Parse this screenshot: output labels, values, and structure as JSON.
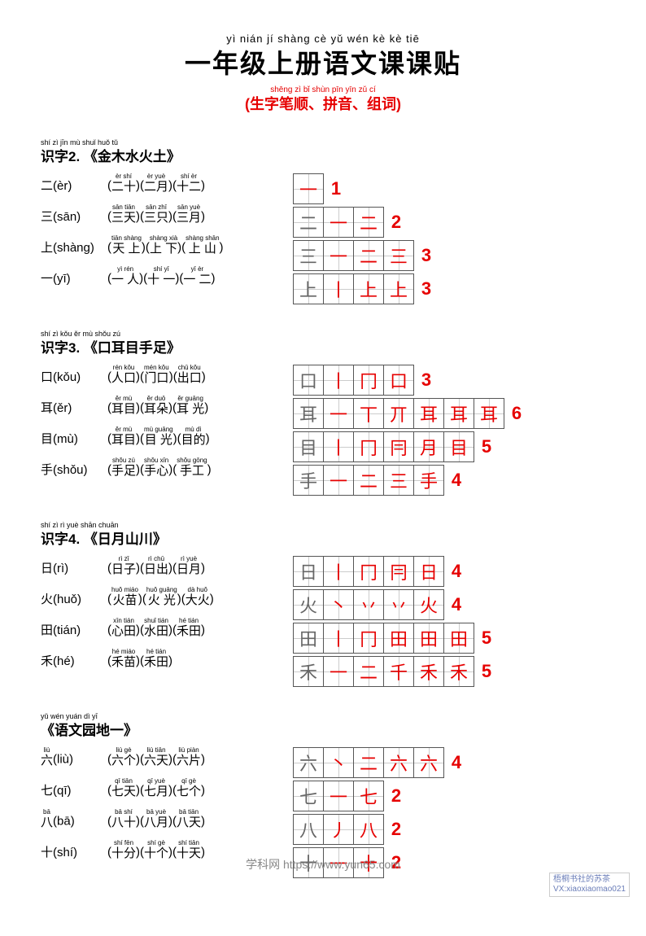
{
  "title": {
    "pinyin": "yì nián jí shàng cè yǔ wén kè kè tiē",
    "text": "一年级上册语文课课贴",
    "sub_pinyin": "shēng zì bǐ shùn   pīn yīn   zǔ cí",
    "sub_text": "(生字笔顺、拼音、组词)"
  },
  "sections": [
    {
      "head_pinyin": "shí zì                 jīn mù shuǐ huǒ tǔ",
      "head_text": "识字2. 《金木水火土》",
      "entries": [
        {
          "char": "二",
          "py": "èr",
          "words": [
            {
              "p": "èr shí",
              "t": "二十"
            },
            {
              "p": "èr yuè",
              "t": "二月"
            },
            {
              "p": "shí èr",
              "t": "十二"
            }
          ]
        },
        {
          "char": "三",
          "py": "sān",
          "words": [
            {
              "p": "sān tiān",
              "t": "三天"
            },
            {
              "p": "sān zhī",
              "t": "三只"
            },
            {
              "p": "sān yuè",
              "t": "三月"
            }
          ]
        },
        {
          "char": "上",
          "py": "shàng",
          "words": [
            {
              "p": "tiān shàng",
              "t": "天 上"
            },
            {
              "p": "shàng xià",
              "t": "上 下"
            },
            {
              "p": "shàng shān",
              "t": "上 山"
            }
          ]
        },
        {
          "char": "一",
          "py": "yī",
          "words": [
            {
              "p": "yì rén",
              "t": "一 人"
            },
            {
              "p": "shí yī",
              "t": "十 一"
            },
            {
              "p": "yī èr",
              "t": "一 二"
            }
          ]
        }
      ],
      "strokes": [
        {
          "cells": [
            "一"
          ],
          "count": "1",
          "colors": [
            "red"
          ]
        },
        {
          "cells": [
            "二",
            "一",
            "二"
          ],
          "count": "2",
          "colors": [
            "gray",
            "red",
            "red"
          ]
        },
        {
          "cells": [
            "三",
            "一",
            "二",
            "三"
          ],
          "count": "3",
          "colors": [
            "gray",
            "red",
            "red",
            "red"
          ]
        },
        {
          "cells": [
            "上",
            "丨",
            "上",
            "上"
          ],
          "count": "3",
          "colors": [
            "gray",
            "red",
            "red",
            "red"
          ]
        }
      ]
    },
    {
      "head_pinyin": "shí zì             kǒu ěr mù shǒu zú",
      "head_text": "识字3. 《口耳目手足》",
      "entries": [
        {
          "char": "口",
          "py": "kǒu",
          "words": [
            {
              "p": "rén kǒu",
              "t": "人口"
            },
            {
              "p": "mén kǒu",
              "t": "门口"
            },
            {
              "p": "chū kǒu",
              "t": "出口"
            }
          ]
        },
        {
          "char": "耳",
          "py": "ěr",
          "words": [
            {
              "p": "ěr mù",
              "t": "耳目"
            },
            {
              "p": "ěr duō",
              "t": "耳朵"
            },
            {
              "p": "ěr guāng",
              "t": "耳 光"
            }
          ]
        },
        {
          "char": "目",
          "py": "mù",
          "words": [
            {
              "p": "ěr mù",
              "t": "耳目"
            },
            {
              "p": "mù guāng",
              "t": "目 光"
            },
            {
              "p": "mù dì",
              "t": "目的"
            }
          ]
        },
        {
          "char": "手",
          "py": "shǒu",
          "words": [
            {
              "p": "shǒu zú",
              "t": "手足"
            },
            {
              "p": "shǒu xīn",
              "t": "手心"
            },
            {
              "p": "shǒu gōng",
              "t": "手工"
            }
          ]
        }
      ],
      "strokes": [
        {
          "cells": [
            "口",
            "丨",
            "冂",
            "口"
          ],
          "count": "3",
          "colors": [
            "gray",
            "red",
            "red",
            "red"
          ]
        },
        {
          "cells": [
            "耳",
            "一",
            "丅",
            "丌",
            "耳",
            "耳",
            "耳"
          ],
          "count": "6",
          "colors": [
            "gray",
            "red",
            "red",
            "red",
            "red",
            "red",
            "red"
          ]
        },
        {
          "cells": [
            "目",
            "丨",
            "冂",
            "冃",
            "月",
            "目"
          ],
          "count": "5",
          "colors": [
            "gray",
            "red",
            "red",
            "red",
            "red",
            "red"
          ]
        },
        {
          "cells": [
            "手",
            "一",
            "二",
            "三",
            "手"
          ],
          "count": "4",
          "colors": [
            "gray",
            "red",
            "red",
            "red",
            "red"
          ]
        }
      ]
    },
    {
      "head_pinyin": "shí zì           rì yuè shān chuān",
      "head_text": "识字4. 《日月山川》",
      "entries": [
        {
          "char": "日",
          "py": "rì",
          "words": [
            {
              "p": "rì zǐ",
              "t": "日子"
            },
            {
              "p": "rì chū",
              "t": "日出"
            },
            {
              "p": "rì yuè",
              "t": "日月"
            }
          ]
        },
        {
          "char": "火",
          "py": "huǒ",
          "words": [
            {
              "p": "huǒ miáo",
              "t": "火苗"
            },
            {
              "p": "huǒ guāng",
              "t": "火 光"
            },
            {
              "p": "dà huǒ",
              "t": "大火"
            }
          ]
        },
        {
          "char": "田",
          "py": "tián",
          "words": [
            {
              "p": "xīn tián",
              "t": "心田"
            },
            {
              "p": "shuǐ tián",
              "t": "水田"
            },
            {
              "p": "hé tián",
              "t": "禾田"
            }
          ]
        },
        {
          "char": "禾",
          "py": "hé",
          "words": [
            {
              "p": "hé miáo",
              "t": "禾苗"
            },
            {
              "p": "hé tián",
              "t": "禾田"
            }
          ]
        }
      ],
      "strokes": [
        {
          "cells": [
            "日",
            "丨",
            "冂",
            "冃",
            "日"
          ],
          "count": "4",
          "colors": [
            "gray",
            "red",
            "red",
            "red",
            "red"
          ]
        },
        {
          "cells": [
            "火",
            "丶",
            "丷",
            "丷",
            "火"
          ],
          "count": "4",
          "colors": [
            "gray",
            "red",
            "red",
            "red",
            "red"
          ]
        },
        {
          "cells": [
            "田",
            "丨",
            "冂",
            "田",
            "田",
            "田"
          ],
          "count": "5",
          "colors": [
            "gray",
            "red",
            "red",
            "red",
            "red",
            "red"
          ]
        },
        {
          "cells": [
            "禾",
            "一",
            "二",
            "千",
            "禾",
            "禾"
          ],
          "count": "5",
          "colors": [
            "gray",
            "red",
            "red",
            "red",
            "red",
            "red"
          ]
        }
      ]
    },
    {
      "head_pinyin": "yǔ wén yuán dì yī",
      "head_text": "《语文园地一》",
      "entries": [
        {
          "char": "六",
          "py": "liù",
          "top_py": "liù",
          "words": [
            {
              "p": "liù gè",
              "t": "六个"
            },
            {
              "p": "liù tiān",
              "t": "六天"
            },
            {
              "p": "liù piàn",
              "t": "六片"
            }
          ]
        },
        {
          "char": "七",
          "py": "qī",
          "words": [
            {
              "p": "qī tiān",
              "t": "七天"
            },
            {
              "p": "qī yuè",
              "t": "七月"
            },
            {
              "p": "qī gè",
              "t": "七个"
            }
          ]
        },
        {
          "char": "八",
          "py": "bā",
          "top_py": "bā",
          "words": [
            {
              "p": "bā shí",
              "t": "八十"
            },
            {
              "p": "bā yuè",
              "t": "八月"
            },
            {
              "p": "bā tiān",
              "t": "八天"
            }
          ]
        },
        {
          "char": "十",
          "py": "shí",
          "words": [
            {
              "p": "shí fēn",
              "t": "十分"
            },
            {
              "p": "shí gè",
              "t": "十个"
            },
            {
              "p": "shí tiān",
              "t": "十天"
            }
          ]
        }
      ],
      "strokes": [
        {
          "cells": [
            "六",
            "丶",
            "二",
            "六",
            "六"
          ],
          "count": "4",
          "colors": [
            "gray",
            "red",
            "red",
            "red",
            "red"
          ]
        },
        {
          "cells": [
            "七",
            "一",
            "七"
          ],
          "count": "2",
          "colors": [
            "gray",
            "red",
            "red"
          ]
        },
        {
          "cells": [
            "八",
            "丿",
            "八"
          ],
          "count": "2",
          "colors": [
            "gray",
            "red",
            "red"
          ]
        },
        {
          "cells": [
            "十",
            "一",
            "十"
          ],
          "count": "2",
          "colors": [
            "gray",
            "red",
            "red"
          ]
        }
      ]
    }
  ],
  "watermark": "学科网 https://www.yun65.com",
  "corner1": "梧桐书社的苏茶",
  "corner2": "VX:xiaoxiaomao021"
}
